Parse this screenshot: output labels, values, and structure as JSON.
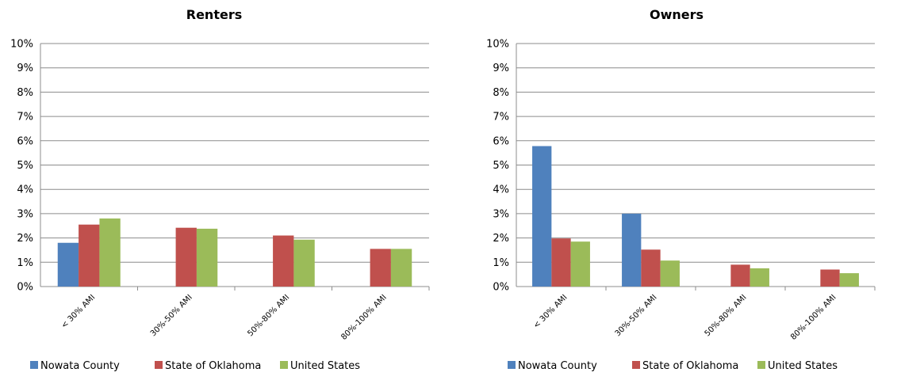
{
  "chart_data": [
    {
      "type": "bar",
      "title": "Renters",
      "categories": [
        "< 30% AMI",
        "30%-50% AMI",
        "50%-80% AMI",
        "80%-100% AMI"
      ],
      "y_tick_labels": [
        "0%",
        "1%",
        "2%",
        "3%",
        "4%",
        "5%",
        "6%",
        "7%",
        "8%",
        "9%",
        "10%"
      ],
      "ylim": [
        0,
        10
      ],
      "grid": true,
      "legend_position": "bottom",
      "series": [
        {
          "name": "Nowata County",
          "color": "#4f81bd",
          "values": [
            1.8,
            0,
            0,
            0
          ]
        },
        {
          "name": "State of Oklahoma",
          "color": "#c0504d",
          "values": [
            2.55,
            2.42,
            2.1,
            1.55
          ]
        },
        {
          "name": "United States",
          "color": "#9bbb59",
          "values": [
            2.8,
            2.38,
            1.93,
            1.55
          ]
        }
      ]
    },
    {
      "type": "bar",
      "title": "Owners",
      "categories": [
        "< 30% AMI",
        "30%-50% AMI",
        "50%-80% AMI",
        "80%-100% AMI"
      ],
      "y_tick_labels": [
        "0%",
        "1%",
        "2%",
        "3%",
        "4%",
        "5%",
        "6%",
        "7%",
        "8%",
        "9%",
        "10%"
      ],
      "ylim": [
        0,
        10
      ],
      "grid": true,
      "legend_position": "bottom",
      "series": [
        {
          "name": "Nowata County",
          "color": "#4f81bd",
          "values": [
            5.78,
            3.0,
            0,
            0
          ]
        },
        {
          "name": "State of Oklahoma",
          "color": "#c0504d",
          "values": [
            1.98,
            1.52,
            0.9,
            0.7
          ]
        },
        {
          "name": "United States",
          "color": "#9bbb59",
          "values": [
            1.85,
            1.07,
            0.75,
            0.55
          ]
        }
      ]
    }
  ]
}
